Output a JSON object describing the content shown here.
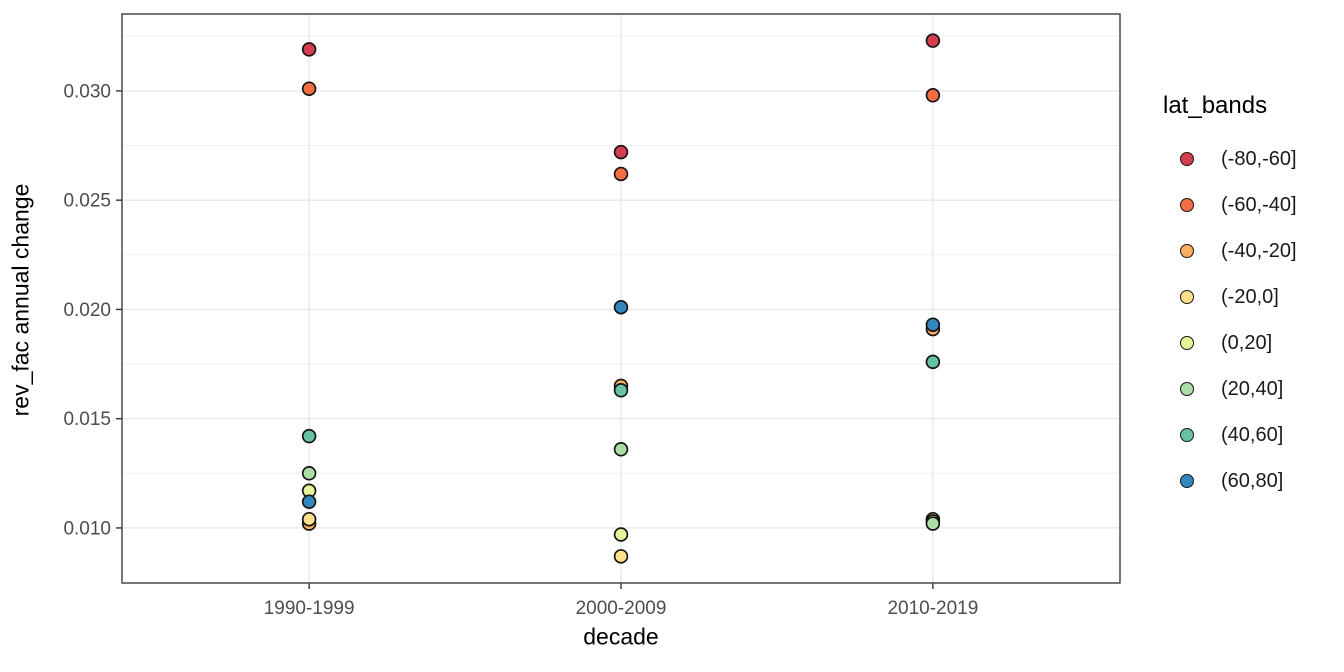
{
  "chart_data": {
    "type": "scatter",
    "title": "",
    "xlabel": "decade",
    "ylabel": "rev_fac annual change",
    "legend_title": "lat_bands",
    "legend_position": "right",
    "grid": true,
    "categories": [
      "1990-1999",
      "2000-2009",
      "2010-2019"
    ],
    "ylim": [
      0.00748,
      0.03352
    ],
    "y_ticks": [
      0.01,
      0.015,
      0.02,
      0.025,
      0.03
    ],
    "y_tick_labels": [
      "0.010",
      "0.015",
      "0.020",
      "0.025",
      "0.030"
    ],
    "y_minor_ticks": [
      0.0125,
      0.0175,
      0.0225,
      0.0275,
      0.0325
    ],
    "series": [
      {
        "name": "(-80,-60]",
        "color": "#D53E4F",
        "values": [
          0.0319,
          0.0272,
          0.0323
        ]
      },
      {
        "name": "(-60,-40]",
        "color": "#F46D43",
        "values": [
          0.0301,
          0.0262,
          0.0298
        ]
      },
      {
        "name": "(-40,-20]",
        "color": "#FDAE61",
        "values": [
          0.0102,
          0.0165,
          0.0191
        ]
      },
      {
        "name": "(-20,0]",
        "color": "#FEE08B",
        "values": [
          0.0104,
          0.0087,
          0.0104
        ]
      },
      {
        "name": "(0,20]",
        "color": "#E6F598",
        "values": [
          0.0117,
          0.0097,
          0.0103
        ]
      },
      {
        "name": "(20,40]",
        "color": "#ABDDA4",
        "values": [
          0.0125,
          0.0136,
          0.0102
        ]
      },
      {
        "name": "(40,60]",
        "color": "#66C2A5",
        "values": [
          0.0142,
          0.0163,
          0.0176
        ]
      },
      {
        "name": "(60,80]",
        "color": "#3288BD",
        "values": [
          0.0112,
          0.0201,
          0.0193
        ]
      }
    ]
  }
}
